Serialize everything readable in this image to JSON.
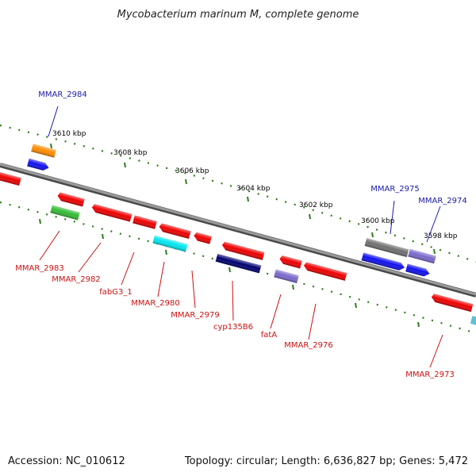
{
  "title": "Mycobacterium marinum M, complete genome",
  "footer": {
    "accession": "Accession: NC_010612",
    "summary": "Topology: circular; Length: 6,636,827 bp; Genes: 5,472"
  },
  "colors": {
    "backbone": "#808080",
    "ticks": "#2e7d1a",
    "forward_label": "#1a1aaa",
    "reverse_label": "#cc1111"
  },
  "ruler": {
    "labels": [
      "3610 kbp",
      "3608 kbp",
      "3606 kbp",
      "3604 kbp",
      "3602 kbp",
      "3600 kbp",
      "3598 kbp"
    ]
  },
  "labels": [
    {
      "text": "MMAR_2984",
      "strand": "forward"
    },
    {
      "text": "MMAR_2975",
      "strand": "forward"
    },
    {
      "text": "MMAR_2974",
      "strand": "forward"
    },
    {
      "text": "MMAR_2983",
      "strand": "reverse"
    },
    {
      "text": "MMAR_2982",
      "strand": "reverse"
    },
    {
      "text": "fabG3_1",
      "strand": "reverse"
    },
    {
      "text": "MMAR_2980",
      "strand": "reverse"
    },
    {
      "text": "MMAR_2979",
      "strand": "reverse"
    },
    {
      "text": "cyp135B6",
      "strand": "reverse"
    },
    {
      "text": "fatA",
      "strand": "reverse"
    },
    {
      "text": "MMAR_2976",
      "strand": "reverse"
    },
    {
      "text": "MMAR_2973",
      "strand": "reverse"
    }
  ],
  "genes": [
    {
      "color": "#ff8c00"
    },
    {
      "color": "#1010ee"
    },
    {
      "color": "#ee0000"
    },
    {
      "color": "#ee0000"
    },
    {
      "color": "#33bb33"
    },
    {
      "color": "#ee0000"
    },
    {
      "color": "#ee0000"
    },
    {
      "color": "#00e5ee"
    },
    {
      "color": "#ee0000"
    },
    {
      "color": "#ee0000"
    },
    {
      "color": "#ee0000"
    },
    {
      "color": "#000070"
    },
    {
      "color": "#ee0000"
    },
    {
      "color": "#7b68cc"
    },
    {
      "color": "#ee0000"
    },
    {
      "color": "#707070"
    },
    {
      "color": "#7b68cc"
    },
    {
      "color": "#1010ee"
    },
    {
      "color": "#1010ee"
    },
    {
      "color": "#ee0000"
    },
    {
      "color": "#60c0d0"
    }
  ]
}
